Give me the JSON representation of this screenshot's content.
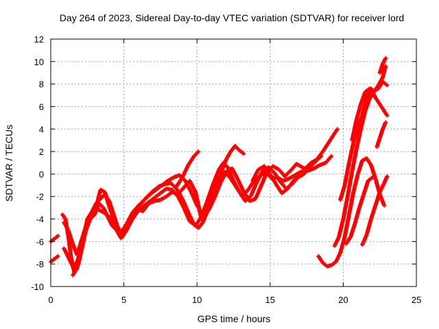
{
  "chart_data": {
    "type": "scatter",
    "title": "Day 264 of 2023, Sidereal Day-to-day VTEC variation (SDTVAR) for receiver lord",
    "xlabel": "GPS time / hours",
    "ylabel": "SDTVAR / TECUs",
    "xlim": [
      0,
      25
    ],
    "ylim": [
      -10,
      12
    ],
    "x_ticks": [
      0,
      5,
      10,
      15,
      20,
      25
    ],
    "y_ticks": [
      -10,
      -8,
      -6,
      -4,
      -2,
      0,
      2,
      4,
      6,
      8,
      10,
      12
    ],
    "grid": true,
    "marker": "plus",
    "colors": {
      "series": "#ff0000",
      "grid": "#a0a0a0",
      "frame": "#000000"
    },
    "series": [
      {
        "points": [
          [
            0.0,
            -6.0
          ],
          [
            0.3,
            -5.7
          ],
          [
            0.5,
            -5.5
          ]
        ]
      },
      {
        "points": [
          [
            0.0,
            -7.8
          ],
          [
            0.3,
            -7.5
          ],
          [
            0.5,
            -7.3
          ]
        ]
      },
      {
        "points": [
          [
            0.8,
            -3.6
          ],
          [
            1.0,
            -4.0
          ],
          [
            1.2,
            -5.5
          ],
          [
            1.4,
            -7.5
          ],
          [
            1.6,
            -8.7
          ],
          [
            1.9,
            -8.0
          ],
          [
            2.2,
            -6.0
          ],
          [
            2.5,
            -4.0
          ],
          [
            2.8,
            -3.4
          ],
          [
            3.1,
            -2.6
          ],
          [
            3.4,
            -2.2
          ],
          [
            3.7,
            -1.8
          ],
          [
            4.0,
            -2.4
          ],
          [
            4.3,
            -3.6
          ],
          [
            4.6,
            -4.8
          ],
          [
            4.9,
            -5.6
          ],
          [
            5.2,
            -4.9
          ],
          [
            5.5,
            -4.0
          ],
          [
            5.8,
            -3.2
          ],
          [
            6.2,
            -2.6
          ],
          [
            6.6,
            -2.0
          ],
          [
            7.0,
            -1.5
          ],
          [
            7.4,
            -1.1
          ],
          [
            7.8,
            -0.9
          ],
          [
            8.2,
            -0.8
          ],
          [
            8.6,
            -1.3
          ],
          [
            9.0,
            -2.2
          ],
          [
            9.4,
            -3.4
          ],
          [
            9.8,
            -4.5
          ],
          [
            10.1,
            -4.8
          ],
          [
            10.4,
            -4.3
          ],
          [
            10.8,
            -3.0
          ],
          [
            11.2,
            -1.5
          ],
          [
            11.6,
            0.0
          ],
          [
            12.0,
            1.3
          ],
          [
            12.3,
            2.0
          ],
          [
            12.6,
            2.5
          ],
          [
            12.9,
            2.1
          ],
          [
            13.2,
            1.8
          ]
        ]
      },
      {
        "points": [
          [
            0.9,
            -4.3
          ],
          [
            1.2,
            -5.0
          ],
          [
            1.5,
            -6.2
          ],
          [
            1.8,
            -7.2
          ],
          [
            2.2,
            -5.5
          ],
          [
            2.6,
            -3.8
          ],
          [
            3.0,
            -3.5
          ],
          [
            3.4,
            -1.4
          ],
          [
            3.7,
            -1.6
          ],
          [
            4.0,
            -2.9
          ],
          [
            4.4,
            -4.3
          ],
          [
            4.8,
            -5.2
          ],
          [
            5.2,
            -4.4
          ],
          [
            5.6,
            -3.4
          ],
          [
            6.0,
            -2.8
          ],
          [
            6.4,
            -2.3
          ],
          [
            6.8,
            -1.8
          ],
          [
            7.2,
            -1.4
          ],
          [
            7.6,
            -1.0
          ],
          [
            8.0,
            -0.6
          ],
          [
            8.4,
            -0.3
          ],
          [
            8.8,
            -0.1
          ],
          [
            9.2,
            -0.6
          ],
          [
            9.6,
            -1.6
          ],
          [
            10.0,
            -2.8
          ],
          [
            10.4,
            -3.6
          ],
          [
            10.8,
            -3.2
          ],
          [
            11.2,
            -2.1
          ],
          [
            11.6,
            -0.8
          ],
          [
            12.0,
            0.2
          ],
          [
            12.4,
            0.5
          ],
          [
            12.8,
            -0.5
          ],
          [
            13.2,
            -1.6
          ],
          [
            13.6,
            -2.4
          ],
          [
            14.0,
            -2.2
          ],
          [
            14.4,
            -1.0
          ],
          [
            14.8,
            0.2
          ],
          [
            15.2,
            0.7
          ],
          [
            15.6,
            0.4
          ],
          [
            16.0,
            -0.2
          ],
          [
            16.4,
            0.3
          ],
          [
            16.8,
            0.9
          ],
          [
            17.2,
            0.6
          ],
          [
            17.6,
            0.3
          ],
          [
            18.0,
            0.5
          ],
          [
            18.4,
            0.8
          ],
          [
            18.8,
            1.0
          ],
          [
            19.2,
            1.6
          ]
        ]
      },
      {
        "points": [
          [
            0.9,
            -6.6
          ],
          [
            1.2,
            -7.4
          ],
          [
            1.5,
            -8.2
          ],
          [
            1.8,
            -7.8
          ],
          [
            2.1,
            -6.6
          ],
          [
            2.4,
            -5.0
          ],
          [
            2.7,
            -3.6
          ],
          [
            3.0,
            -3.0
          ],
          [
            3.3,
            -3.2
          ],
          [
            3.6,
            -3.4
          ],
          [
            3.9,
            -3.7
          ],
          [
            4.2,
            -4.0
          ],
          [
            4.5,
            -4.6
          ],
          [
            4.8,
            -5.4
          ],
          [
            5.1,
            -5.2
          ],
          [
            5.5,
            -4.2
          ],
          [
            5.9,
            -3.4
          ],
          [
            6.3,
            -2.9
          ],
          [
            6.7,
            -2.5
          ],
          [
            7.1,
            -2.1
          ],
          [
            7.5,
            -1.7
          ],
          [
            7.9,
            -1.3
          ],
          [
            8.3,
            -1.4
          ],
          [
            8.7,
            -2.0
          ],
          [
            9.1,
            -3.0
          ],
          [
            9.5,
            -4.2
          ],
          [
            9.9,
            -4.6
          ],
          [
            10.3,
            -3.8
          ],
          [
            10.7,
            -2.4
          ],
          [
            11.1,
            -0.9
          ],
          [
            11.5,
            0.4
          ],
          [
            11.8,
            1.0
          ],
          [
            12.1,
            0.6
          ],
          [
            12.5,
            -0.6
          ],
          [
            12.9,
            -1.6
          ],
          [
            13.3,
            -2.4
          ],
          [
            13.7,
            -1.9
          ],
          [
            14.1,
            -0.7
          ],
          [
            14.5,
            0.3
          ],
          [
            14.9,
            0.6
          ],
          [
            15.3,
            0.1
          ],
          [
            15.7,
            -0.7
          ],
          [
            16.1,
            -1.3
          ],
          [
            16.5,
            -0.9
          ],
          [
            16.9,
            -0.3
          ],
          [
            17.3,
            0.0
          ],
          [
            17.7,
            0.6
          ],
          [
            18.1,
            1.1
          ],
          [
            18.5,
            1.6
          ]
        ]
      },
      {
        "points": [
          [
            1.5,
            -9.0
          ],
          [
            1.8,
            -8.4
          ],
          [
            2.1,
            -6.8
          ],
          [
            2.4,
            -5.0
          ],
          [
            2.7,
            -4.0
          ],
          [
            3.0,
            -3.6
          ],
          [
            3.3,
            -2.6
          ],
          [
            3.6,
            -3.0
          ],
          [
            3.9,
            -3.8
          ],
          [
            4.2,
            -4.6
          ],
          [
            4.5,
            -5.0
          ],
          [
            4.8,
            -5.7
          ],
          [
            5.1,
            -5.0
          ],
          [
            5.5,
            -3.9
          ],
          [
            5.9,
            -3.1
          ],
          [
            6.3,
            -3.3
          ],
          [
            6.7,
            -2.6
          ],
          [
            7.1,
            -2.4
          ],
          [
            7.5,
            -2.3
          ],
          [
            7.9,
            -2.0
          ],
          [
            8.3,
            -1.6
          ],
          [
            8.7,
            -1.8
          ],
          [
            9.1,
            -1.2
          ],
          [
            9.5,
            -0.6
          ],
          [
            9.9,
            -1.6
          ],
          [
            10.3,
            -4.0
          ],
          [
            10.7,
            -3.4
          ],
          [
            11.1,
            -1.8
          ],
          [
            11.5,
            -0.6
          ],
          [
            11.9,
            0.2
          ],
          [
            12.3,
            -0.4
          ],
          [
            12.7,
            -1.2
          ],
          [
            13.1,
            -2.0
          ],
          [
            13.5,
            -1.4
          ],
          [
            13.9,
            -0.6
          ],
          [
            14.3,
            -0.2
          ],
          [
            14.7,
            0.2
          ],
          [
            15.1,
            -0.4
          ],
          [
            15.5,
            -0.3
          ],
          [
            15.9,
            -0.6
          ],
          [
            16.3,
            -0.4
          ],
          [
            16.7,
            -0.1
          ],
          [
            17.1,
            0.2
          ]
        ]
      },
      {
        "points": [
          [
            8.6,
            -1.1
          ],
          [
            9.0,
            -0.3
          ],
          [
            9.4,
            0.8
          ],
          [
            9.8,
            1.6
          ],
          [
            10.1,
            2.0
          ]
        ]
      },
      {
        "points": [
          [
            13.8,
            -0.6
          ],
          [
            14.2,
            0.4
          ],
          [
            14.6,
            0.7
          ],
          [
            15.0,
            0.0
          ],
          [
            15.4,
            -0.9
          ],
          [
            15.8,
            -1.7
          ],
          [
            16.2,
            -1.3
          ],
          [
            16.6,
            -0.6
          ],
          [
            17.0,
            -0.1
          ],
          [
            17.4,
            0.5
          ],
          [
            17.8,
            1.0
          ],
          [
            18.2,
            1.3
          ],
          [
            18.6,
            2.0
          ],
          [
            19.0,
            2.8
          ],
          [
            19.4,
            3.6
          ],
          [
            19.6,
            4.0
          ]
        ]
      },
      {
        "points": [
          [
            18.3,
            -7.3
          ],
          [
            18.6,
            -7.9
          ],
          [
            18.9,
            -8.2
          ],
          [
            19.2,
            -8.1
          ],
          [
            19.5,
            -7.8
          ],
          [
            19.8,
            -7.0
          ],
          [
            20.1,
            -5.6
          ],
          [
            20.4,
            -3.6
          ],
          [
            20.7,
            -1.6
          ],
          [
            21.0,
            0.0
          ],
          [
            21.3,
            1.2
          ],
          [
            21.6,
            1.4
          ],
          [
            21.9,
            0.8
          ],
          [
            22.2,
            -0.4
          ],
          [
            22.5,
            -1.8
          ],
          [
            22.8,
            -2.8
          ]
        ]
      },
      {
        "points": [
          [
            19.4,
            -6.4
          ],
          [
            19.7,
            -5.6
          ],
          [
            20.0,
            -4.0
          ],
          [
            20.3,
            -2.0
          ],
          [
            20.6,
            0.2
          ],
          [
            20.9,
            2.2
          ],
          [
            21.2,
            4.0
          ],
          [
            21.5,
            5.6
          ],
          [
            21.8,
            6.7
          ],
          [
            22.1,
            7.3
          ],
          [
            22.4,
            7.9
          ],
          [
            22.7,
            8.6
          ],
          [
            22.9,
            9.6
          ]
        ]
      },
      {
        "points": [
          [
            19.8,
            -2.3
          ],
          [
            20.1,
            -1.0
          ],
          [
            20.4,
            1.0
          ],
          [
            20.7,
            2.8
          ],
          [
            21.0,
            4.2
          ],
          [
            21.3,
            5.2
          ],
          [
            21.6,
            6.8
          ],
          [
            21.9,
            7.6
          ],
          [
            22.2,
            6.8
          ],
          [
            22.5,
            6.2
          ],
          [
            22.8,
            5.6
          ],
          [
            23.0,
            5.2
          ]
        ]
      },
      {
        "points": [
          [
            20.6,
            3.0
          ],
          [
            20.9,
            4.8
          ],
          [
            21.2,
            6.2
          ],
          [
            21.5,
            7.3
          ],
          [
            21.8,
            7.6
          ],
          [
            22.1,
            7.4
          ],
          [
            22.4,
            7.6
          ],
          [
            22.7,
            8.2
          ],
          [
            23.0,
            7.9
          ]
        ]
      },
      {
        "points": [
          [
            20.2,
            -6.2
          ],
          [
            20.5,
            -5.6
          ],
          [
            20.8,
            -4.4
          ],
          [
            21.1,
            -3.0
          ],
          [
            21.4,
            -1.8
          ],
          [
            21.7,
            -0.6
          ],
          [
            22.0,
            -0.3
          ]
        ]
      },
      {
        "points": [
          [
            21.3,
            -6.3
          ],
          [
            21.6,
            -5.4
          ],
          [
            21.9,
            -4.0
          ],
          [
            22.2,
            -2.8
          ],
          [
            22.5,
            -1.6
          ],
          [
            22.8,
            -0.8
          ],
          [
            23.0,
            -0.2
          ]
        ]
      },
      {
        "points": [
          [
            22.3,
            2.4
          ],
          [
            22.5,
            3.2
          ],
          [
            22.7,
            4.0
          ],
          [
            22.9,
            4.6
          ]
        ]
      },
      {
        "points": [
          [
            22.5,
            9.0
          ],
          [
            22.7,
            9.8
          ],
          [
            22.9,
            10.3
          ]
        ]
      }
    ]
  }
}
